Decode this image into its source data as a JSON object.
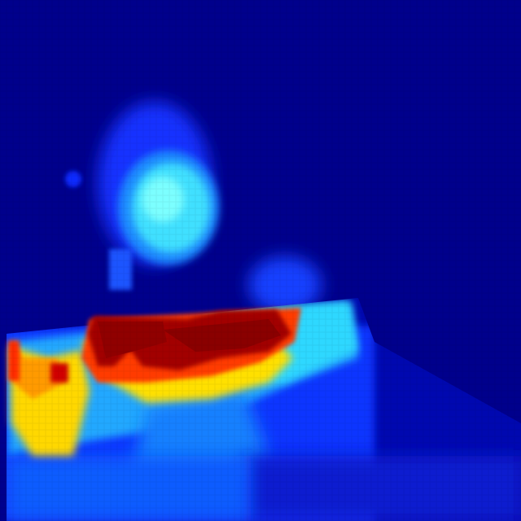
{
  "image": {
    "kind": "pseudocolor heatmap",
    "colormap": "jet",
    "colormap_stops": [
      "#00008f",
      "#0000ff",
      "#00ffff",
      "#ffff00",
      "#ff0000",
      "#800000"
    ],
    "background_color": "#00008c",
    "text": []
  }
}
